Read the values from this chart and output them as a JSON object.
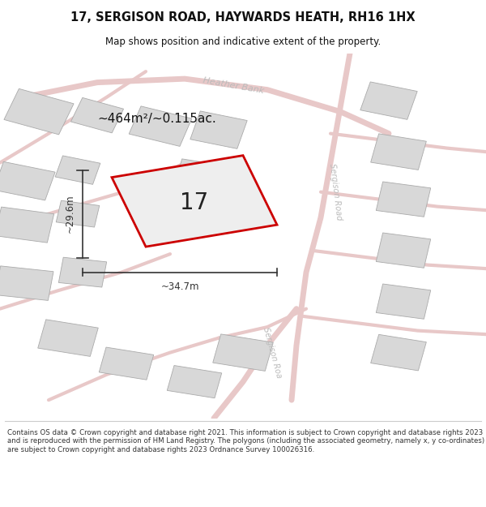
{
  "title": "17, SERGISON ROAD, HAYWARDS HEATH, RH16 1HX",
  "subtitle": "Map shows position and indicative extent of the property.",
  "footer": "Contains OS data © Crown copyright and database right 2021. This information is subject to Crown copyright and database rights 2023 and is reproduced with the permission of HM Land Registry. The polygons (including the associated geometry, namely x, y co-ordinates) are subject to Crown copyright and database rights 2023 Ordnance Survey 100026316.",
  "area_label": "~464m²/~0.115ac.",
  "dim_h_label": "~29.6m",
  "dim_w_label": "~34.7m",
  "label_17": "17",
  "road_label_heather": "Heather Bank",
  "road_label_sergison_upper": "Sergison Road",
  "road_label_sergison_lower": "Sergison Roa",
  "map_bg": "#f0eeee",
  "road_fill": "#e8c8c8",
  "road_edge": "#d4a0a0",
  "building_fill": "#d8d8d8",
  "building_edge": "#aaaaaa",
  "plot_fill": "#eeeeee",
  "plot_edge": "#cc0000",
  "dim_color": "#333333",
  "road_label_color": "#bbbbbb",
  "text_color": "#111111"
}
